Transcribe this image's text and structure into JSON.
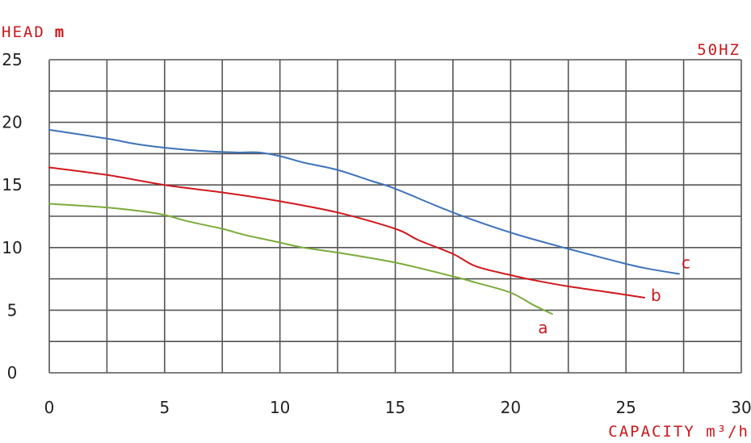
{
  "chart_data": {
    "type": "line",
    "ylabel": "HEAD",
    "ylabel_unit": "m",
    "xlabel": "CAPACITY m³/h",
    "annotation": "50HZ",
    "xlim": [
      0,
      30
    ],
    "ylim": [
      0,
      25
    ],
    "x_ticks": [
      "0",
      "5",
      "10",
      "15",
      "20",
      "25",
      "30"
    ],
    "y_ticks": [
      "0",
      "5",
      "10",
      "15",
      "20",
      "25"
    ],
    "grid": true,
    "series": [
      {
        "name": "a",
        "color": "#7aab3a",
        "points": [
          [
            0,
            13.5
          ],
          [
            2.5,
            13.2
          ],
          [
            4,
            12.9
          ],
          [
            5,
            12.6
          ],
          [
            6,
            12.1
          ],
          [
            7.5,
            11.5
          ],
          [
            8.5,
            11.0
          ],
          [
            10,
            10.4
          ],
          [
            11,
            10.0
          ],
          [
            12.5,
            9.6
          ],
          [
            15,
            8.8
          ],
          [
            17.5,
            7.7
          ],
          [
            18.5,
            7.2
          ],
          [
            20,
            6.4
          ],
          [
            21,
            5.4
          ],
          [
            21.8,
            4.7
          ]
        ]
      },
      {
        "name": "b",
        "color": "#d0191e",
        "points": [
          [
            0,
            16.4
          ],
          [
            2.5,
            15.8
          ],
          [
            5,
            15.0
          ],
          [
            7.5,
            14.4
          ],
          [
            9,
            14.0
          ],
          [
            10,
            13.7
          ],
          [
            12.5,
            12.8
          ],
          [
            15,
            11.5
          ],
          [
            16,
            10.6
          ],
          [
            17.5,
            9.5
          ],
          [
            18.5,
            8.5
          ],
          [
            20,
            7.8
          ],
          [
            21,
            7.4
          ],
          [
            22.5,
            6.9
          ],
          [
            24,
            6.5
          ],
          [
            25.8,
            6.0
          ]
        ]
      },
      {
        "name": "c",
        "color": "#3e72b8",
        "points": [
          [
            0,
            19.4
          ],
          [
            2.5,
            18.7
          ],
          [
            4,
            18.2
          ],
          [
            6,
            17.8
          ],
          [
            8,
            17.6
          ],
          [
            9,
            17.6
          ],
          [
            10,
            17.3
          ],
          [
            11,
            16.8
          ],
          [
            12.5,
            16.2
          ],
          [
            14,
            15.3
          ],
          [
            15,
            14.7
          ],
          [
            17.5,
            12.8
          ],
          [
            20,
            11.2
          ],
          [
            22.5,
            9.9
          ],
          [
            25,
            8.7
          ],
          [
            26,
            8.3
          ],
          [
            27.3,
            7.9
          ]
        ]
      }
    ],
    "label_positions": {
      "a": [
        21.4,
        3.6
      ],
      "b": [
        26.3,
        6.2
      ],
      "c": [
        27.6,
        8.8
      ]
    }
  }
}
